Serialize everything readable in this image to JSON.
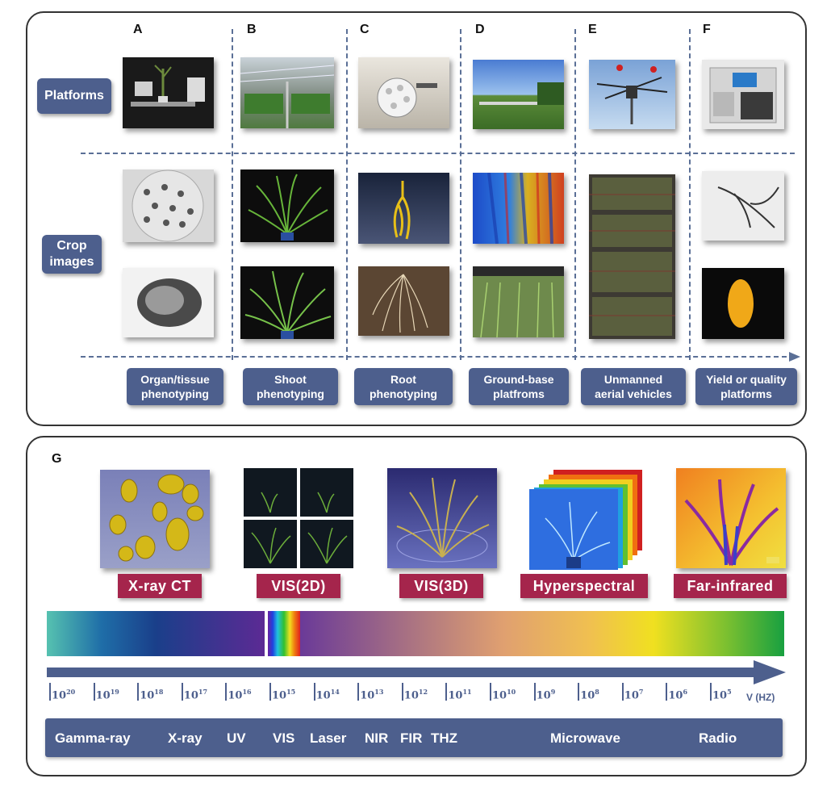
{
  "top_panel": {
    "columns": [
      {
        "letter": "A",
        "category": [
          "Organ/tissue",
          "phenotyping"
        ]
      },
      {
        "letter": "B",
        "category": [
          "Shoot",
          "phenotyping"
        ]
      },
      {
        "letter": "C",
        "category": [
          "Root",
          "phenotyping"
        ]
      },
      {
        "letter": "D",
        "category": [
          "Ground-base",
          "platfroms"
        ]
      },
      {
        "letter": "E",
        "category": [
          "Unmanned",
          "aerial vehicles"
        ]
      },
      {
        "letter": "F",
        "category": [
          "Yield or quality",
          "platforms"
        ]
      }
    ],
    "row_labels": {
      "platforms": "Platforms",
      "crop_line1": "Crop",
      "crop_line2": "images"
    }
  },
  "bottom_panel": {
    "letter": "G",
    "modalities": [
      "X-ray CT",
      "VIS(2D)",
      "VIS(3D)",
      "Hyperspectral",
      "Far-infrared"
    ],
    "frequency_ticks": [
      "20",
      "19",
      "18",
      "17",
      "16",
      "15",
      "14",
      "13",
      "12",
      "11",
      "10",
      "9",
      "8",
      "7",
      "6",
      "5"
    ],
    "tick_base": "10",
    "frequency_unit": "V (HZ)",
    "bands": [
      "Gamma-ray",
      "X-ray",
      "UV",
      "VIS",
      "Laser",
      "NIR",
      "FIR",
      "THZ",
      "Microwave",
      "Radio"
    ]
  },
  "colors": {
    "label_blue": "#4d5f8d",
    "modality_red": "#a5254c",
    "dash_blue": "#5a6f96"
  }
}
